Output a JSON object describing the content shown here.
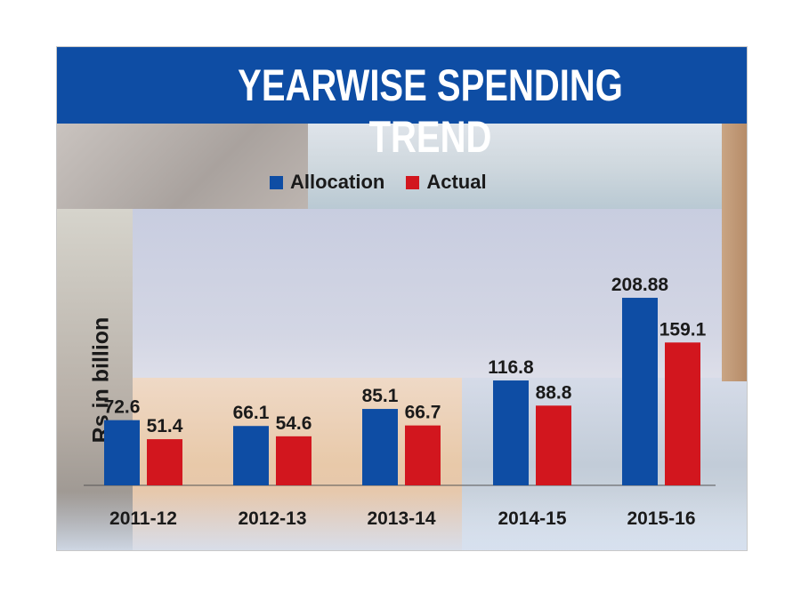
{
  "chart_data": {
    "type": "bar",
    "title": "YEARWISE SPENDING TREND",
    "xlabel": "",
    "ylabel": "Rs in billion",
    "categories": [
      "2011-12",
      "2012-13",
      "2013-14",
      "2014-15",
      "2015-16"
    ],
    "series": [
      {
        "name": "Allocation",
        "color": "#0e4da4",
        "values": [
          72.6,
          66.1,
          85.1,
          116.8,
          208.88
        ],
        "labels": [
          "72.6",
          "66.1",
          "85.1",
          "116.8",
          "208.88"
        ]
      },
      {
        "name": "Actual",
        "color": "#d2161e",
        "values": [
          51.4,
          54.6,
          66.7,
          88.8,
          159.1
        ],
        "labels": [
          "51.4",
          "54.6",
          "66.7",
          "88.8",
          "159.1"
        ]
      }
    ],
    "ylim": [
      0,
      220
    ],
    "grid": false,
    "legend": "top-center"
  }
}
